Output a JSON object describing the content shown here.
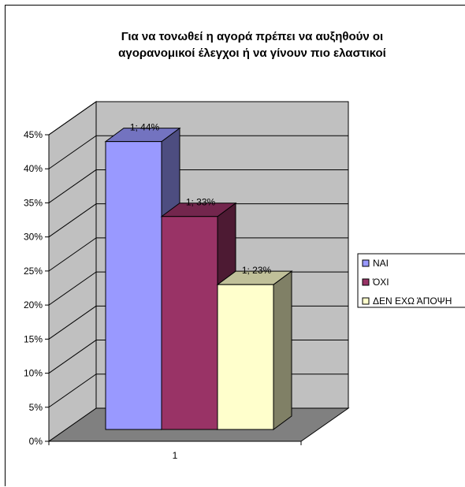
{
  "chart_data": {
    "type": "bar",
    "title_lines": [
      "Για να τονωθεί η αγορά πρέπει να αυξηθούν οι",
      "αγορανομικοί έλεγχοι  ή να γίνουν πιο ελαστικοί"
    ],
    "categories": [
      "1"
    ],
    "series": [
      {
        "name": "ΝΑΙ",
        "values": [
          44
        ],
        "data_label": "1; 44%",
        "color": "#9999FF",
        "side_color": "#4D4D80",
        "top_color": "#7373C0"
      },
      {
        "name": "ΌΧΙ",
        "values": [
          33
        ],
        "data_label": "1; 33%",
        "color": "#993366",
        "side_color": "#4D1A33",
        "top_color": "#73264D"
      },
      {
        "name": "ΔΕΝ ΕΧΩ ΆΠΟΨΗ",
        "values": [
          23
        ],
        "data_label": "1; 23%",
        "color": "#FFFFCC",
        "side_color": "#808066",
        "top_color": "#C0C099"
      }
    ],
    "y_ticks": [
      "0%",
      "5%",
      "10%",
      "15%",
      "20%",
      "25%",
      "30%",
      "35%",
      "40%",
      "45%"
    ],
    "ylim": [
      0,
      45
    ],
    "grid": true,
    "legend_position": "right",
    "wall_color": "#C0C0C0",
    "floor_color": "#808080"
  }
}
